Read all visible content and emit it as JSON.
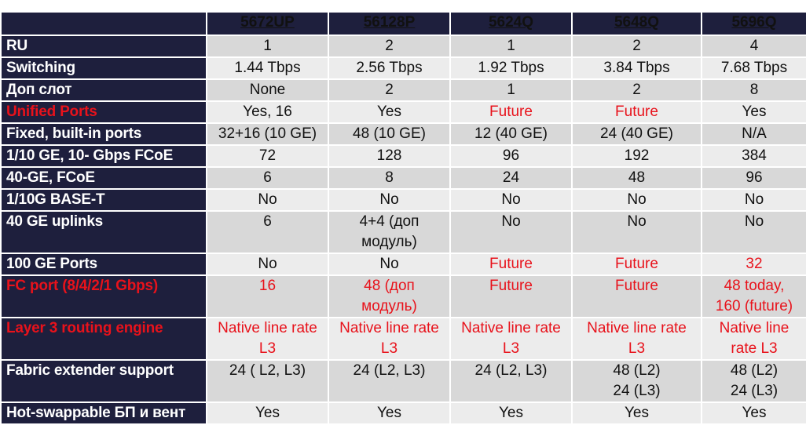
{
  "header": [
    "",
    "5672UP",
    "56128P",
    "5624Q",
    "5648Q",
    "5696Q"
  ],
  "colors": {
    "header_bg": "#1e1f3d",
    "red": "#e8121b",
    "row_dark": "#d8d8d8",
    "row_light": "#ececec"
  },
  "rows": [
    {
      "label": "RU",
      "cells": [
        "1",
        "2",
        "1",
        "2",
        "4"
      ]
    },
    {
      "label": "Switching",
      "cells": [
        "1.44 Tbps",
        "2.56 Tbps",
        "1.92 Tbps",
        "3.84 Tbps",
        "7.68 Tbps"
      ]
    },
    {
      "label": "Доп слот",
      "cells": [
        "None",
        "2",
        "1",
        "2",
        "8"
      ]
    },
    {
      "label": "Unified Ports",
      "cells": [
        "Yes, 16",
        "Yes",
        "Future",
        "Future",
        "Yes"
      ]
    },
    {
      "label": "Fixed, built-in ports",
      "cells": [
        "32+16 (10 GE)",
        "48 (10 GE)",
        "12 (40 GE)",
        "24 (40 GE)",
        "N/A"
      ]
    },
    {
      "label": "1/10 GE, 10- Gbps FCoE",
      "cells": [
        "72",
        "128",
        "96",
        "192",
        "384"
      ]
    },
    {
      "label": "40-GE, FCoE",
      "cells": [
        "6",
        "8",
        "24",
        "48",
        "96"
      ]
    },
    {
      "label": "1/10G BASE-T",
      "cells": [
        "No",
        "No",
        "No",
        "No",
        "No"
      ]
    },
    {
      "label": "40 GE uplinks",
      "cells": [
        "6",
        "4+4 (доп",
        "No",
        "No",
        "No"
      ],
      "cells2": [
        "",
        "модуль)",
        "",
        "",
        ""
      ]
    },
    {
      "label": "100 GE Ports",
      "cells": [
        "No",
        "No",
        "Future",
        "Future",
        "32"
      ]
    },
    {
      "label": "FC port (8/4/2/1 Gbps)",
      "cells": [
        "16",
        "48 (доп",
        "Future",
        "Future",
        "48 today,"
      ],
      "cells2": [
        "",
        "модуль)",
        "",
        "",
        "160 (future)"
      ]
    },
    {
      "label": "Layer 3 routing engine",
      "cells": [
        "Native line rate",
        "Native line rate",
        "Native line rate",
        "Native line rate",
        "Native line"
      ],
      "cells2": [
        "L3",
        "L3",
        "L3",
        "L3",
        "rate L3"
      ]
    },
    {
      "label": "Fabric extender support",
      "cells": [
        "24 ( L2, L3)",
        "24 (L2, L3)",
        "24 (L2, L3)",
        "48 (L2)",
        "48 (L2)"
      ],
      "cells2": [
        "",
        "",
        "",
        "24 (L3)",
        "24 (L3)"
      ]
    },
    {
      "label": "Hot-swappable БП и вент",
      "cells": [
        "Yes",
        "Yes",
        "Yes",
        "Yes",
        "Yes"
      ]
    }
  ]
}
